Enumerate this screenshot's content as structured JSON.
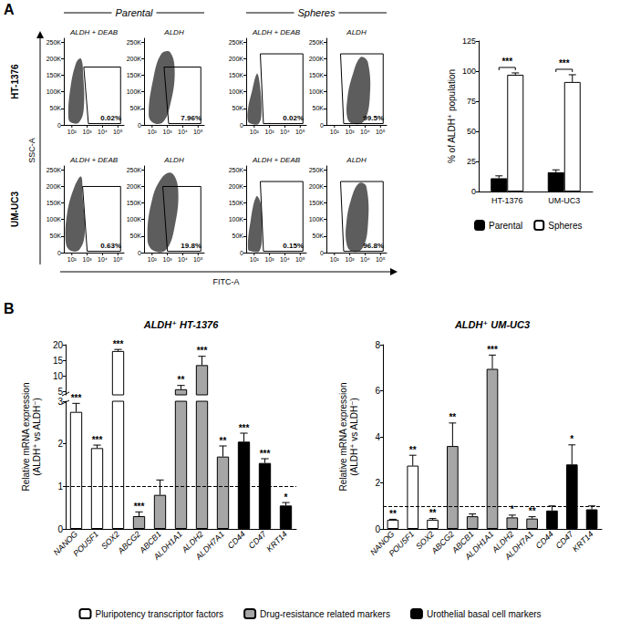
{
  "figure": {
    "panel_labels": [
      "A",
      "B"
    ],
    "headers": [
      "Parental",
      "Spheres"
    ],
    "rows": [
      "HT-1376",
      "UM-UC3"
    ],
    "flow_xlabel": "FITC-A",
    "flow_ylabel": "SSC-A",
    "flow_axes": {
      "log": "x",
      "xlim": [
        30,
        250000
      ],
      "xticks": [
        {
          "value": 100,
          "label": "10²"
        },
        {
          "value": 1000,
          "label": "10³"
        },
        {
          "value": 10000,
          "label": "10⁴"
        },
        {
          "value": 100000,
          "label": "10⁵"
        }
      ],
      "ylim": [
        0,
        262000
      ],
      "yticks": [
        0,
        {
          "value": 50000,
          "label": "50K"
        },
        {
          "value": 100000,
          "label": "100K"
        },
        {
          "value": 150000,
          "label": "150K"
        },
        {
          "value": 200000,
          "label": "200K"
        },
        {
          "value": 250000,
          "label": "250K"
        }
      ]
    }
  },
  "chart_data": [
    {
      "type": "flow",
      "panel": "A",
      "header": "Parental",
      "row": "HT-1376",
      "title": "ALDH + DEAB",
      "gate_label": "0.02%",
      "gate": [
        [
          1200,
          4000
        ],
        [
          150000,
          4000
        ],
        [
          150000,
          175000
        ],
        [
          600,
          175000
        ]
      ],
      "cloud": [
        [
          60,
          20000
        ],
        [
          100,
          6000
        ],
        [
          300,
          8000
        ],
        [
          600,
          50000
        ],
        [
          550,
          150000
        ],
        [
          400,
          200000
        ],
        [
          200,
          190000
        ],
        [
          80,
          110000
        ]
      ]
    },
    {
      "type": "flow",
      "panel": "A",
      "header": "Parental",
      "row": "HT-1376",
      "title": "ALDH",
      "gate_label": "7.96%",
      "gate": [
        [
          1200,
          4000
        ],
        [
          150000,
          4000
        ],
        [
          150000,
          175000
        ],
        [
          600,
          175000
        ]
      ],
      "cloud": [
        [
          60,
          30000
        ],
        [
          120,
          6000
        ],
        [
          500,
          8000
        ],
        [
          1500,
          60000
        ],
        [
          3000,
          160000
        ],
        [
          1500,
          220000
        ],
        [
          400,
          215000
        ],
        [
          120,
          140000
        ]
      ]
    },
    {
      "type": "flow",
      "panel": "A",
      "header": "Spheres",
      "row": "HT-1376",
      "title": "ALDH + DEAB",
      "gate_label": "0.02%",
      "gate": [
        [
          400,
          4000
        ],
        [
          150000,
          4000
        ],
        [
          150000,
          215000
        ],
        [
          250,
          215000
        ]
      ],
      "cloud": [
        [
          40,
          10000
        ],
        [
          70,
          3000
        ],
        [
          200,
          4000
        ],
        [
          300,
          40000
        ],
        [
          220,
          130000
        ],
        [
          150,
          155000
        ],
        [
          70,
          100000
        ],
        [
          40,
          50000
        ]
      ]
    },
    {
      "type": "flow",
      "panel": "A",
      "header": "Spheres",
      "row": "HT-1376",
      "title": "ALDH",
      "gate_label": "99.5%",
      "gate": [
        [
          400,
          4000
        ],
        [
          150000,
          4000
        ],
        [
          150000,
          215000
        ],
        [
          250,
          215000
        ]
      ],
      "cloud": [
        [
          700,
          20000
        ],
        [
          1500,
          4000
        ],
        [
          8000,
          10000
        ],
        [
          20000,
          80000
        ],
        [
          15000,
          190000
        ],
        [
          5000,
          205000
        ],
        [
          1500,
          150000
        ],
        [
          700,
          80000
        ]
      ]
    },
    {
      "type": "flow",
      "panel": "A",
      "header": "Parental",
      "row": "UM-UC3",
      "title": "ALDH + DEAB",
      "gate_label": "0.63%",
      "gate": [
        [
          1000,
          4000
        ],
        [
          150000,
          4000
        ],
        [
          150000,
          200000
        ],
        [
          500,
          200000
        ]
      ],
      "cloud": [
        [
          40,
          30000
        ],
        [
          80,
          6000
        ],
        [
          300,
          8000
        ],
        [
          700,
          60000
        ],
        [
          500,
          170000
        ],
        [
          400,
          230000
        ],
        [
          150,
          200000
        ],
        [
          50,
          120000
        ]
      ]
    },
    {
      "type": "flow",
      "panel": "A",
      "header": "Parental",
      "row": "UM-UC3",
      "title": "ALDH",
      "gate_label": "19.8%",
      "gate": [
        [
          1000,
          4000
        ],
        [
          150000,
          4000
        ],
        [
          150000,
          200000
        ],
        [
          500,
          200000
        ]
      ],
      "cloud": [
        [
          50,
          40000
        ],
        [
          120,
          6000
        ],
        [
          800,
          8000
        ],
        [
          3000,
          80000
        ],
        [
          5000,
          190000
        ],
        [
          2000,
          240000
        ],
        [
          500,
          230000
        ],
        [
          100,
          160000
        ]
      ]
    },
    {
      "type": "flow",
      "panel": "A",
      "header": "Spheres",
      "row": "UM-UC3",
      "title": "ALDH + DEAB",
      "gate_label": "0.15%",
      "gate": [
        [
          400,
          4000
        ],
        [
          150000,
          4000
        ],
        [
          150000,
          215000
        ],
        [
          250,
          215000
        ]
      ],
      "cloud": [
        [
          40,
          10000
        ],
        [
          80,
          3000
        ],
        [
          220,
          5000
        ],
        [
          320,
          50000
        ],
        [
          260,
          150000
        ],
        [
          140,
          170000
        ],
        [
          60,
          100000
        ]
      ]
    },
    {
      "type": "flow",
      "panel": "A",
      "header": "Spheres",
      "row": "UM-UC3",
      "title": "ALDH",
      "gate_label": "96.8%",
      "gate": [
        [
          400,
          4000
        ],
        [
          150000,
          4000
        ],
        [
          150000,
          215000
        ],
        [
          250,
          215000
        ]
      ],
      "cloud": [
        [
          600,
          30000
        ],
        [
          1200,
          5000
        ],
        [
          6000,
          10000
        ],
        [
          15000,
          80000
        ],
        [
          12000,
          200000
        ],
        [
          4000,
          210000
        ],
        [
          1200,
          160000
        ],
        [
          600,
          90000
        ]
      ]
    },
    {
      "type": "bar",
      "panel": "A",
      "ylabel": "% of ALDH⁺ population",
      "categories": [
        "HT-1376",
        "UM-UC3"
      ],
      "series": [
        {
          "name": "Parental",
          "color": "#000000",
          "values": [
            11,
            16
          ],
          "errors": [
            2,
            2
          ]
        },
        {
          "name": "Spheres",
          "color": "#ffffff",
          "values": [
            97,
            91
          ],
          "errors": [
            1.5,
            6
          ]
        }
      ],
      "significance": [
        "***",
        "***"
      ],
      "ylim": [
        0,
        125
      ],
      "yticks": [
        0,
        25,
        50,
        75,
        100,
        125
      ],
      "legend": "bottom"
    },
    {
      "type": "bar",
      "panel": "B",
      "title": "ALDH⁺ HT-1376",
      "ylabel": "Relative mRNA expression\n(ALDH⁺ vs ALDH⁻)",
      "categories": [
        "NANOG",
        "POU5F1",
        "SOX2",
        "ABCG2",
        "ABCB1",
        "ALDH1A1",
        "ALDH2",
        "ALDH7A1",
        "CD44",
        "CD47",
        "KRT14"
      ],
      "series": [
        {
          "name": "Pluripotency transcriptor factors",
          "color": "#ffffff",
          "values": [
            2.75,
            1.9,
            18,
            null,
            null,
            null,
            null,
            null,
            null,
            null,
            null
          ],
          "errors": [
            0.2,
            0.07,
            0.5,
            null,
            null,
            null,
            null,
            null,
            null,
            null,
            null
          ]
        },
        {
          "name": "Drug-resistance related markers",
          "color": "#a6a6a6",
          "values": [
            null,
            null,
            null,
            0.3,
            0.8,
            5.8,
            13.5,
            1.7,
            null,
            null,
            null
          ],
          "errors": [
            null,
            null,
            null,
            0.1,
            0.35,
            1.2,
            2.8,
            0.25,
            null,
            null,
            null
          ]
        },
        {
          "name": "Urothelial basal cell markers",
          "color": "#000000",
          "values": [
            null,
            null,
            null,
            null,
            null,
            null,
            null,
            null,
            2.05,
            1.55,
            0.55
          ],
          "errors": [
            null,
            null,
            null,
            null,
            null,
            null,
            null,
            null,
            0.2,
            0.1,
            0.07
          ]
        }
      ],
      "significance": [
        "***",
        "***",
        "***",
        "***",
        null,
        "**",
        "***",
        "**",
        "***",
        "***",
        "*"
      ],
      "reference_line": 1,
      "ylim": [
        0,
        20
      ],
      "yticks": [
        0,
        1,
        2,
        3,
        5,
        10,
        15,
        20
      ],
      "ybreak": [
        3,
        4
      ],
      "legend": "bottom"
    },
    {
      "type": "bar",
      "panel": "B",
      "title": "ALDH⁺ UM-UC3",
      "ylabel": "Relative mRNA expression\n(ALDH⁺ vs ALDH⁻)",
      "categories": [
        "NANOG",
        "POU5F1",
        "SOX2",
        "ABCG2",
        "ABCB1",
        "ALDH1A1",
        "ALDH2",
        "ALDH7A1",
        "CD44",
        "CD47",
        "KRT14"
      ],
      "series": [
        {
          "name": "Pluripotency transcriptor factors",
          "color": "#ffffff",
          "values": [
            0.4,
            2.75,
            0.4,
            null,
            null,
            null,
            null,
            null,
            null,
            null,
            null
          ],
          "errors": [
            0.02,
            0.45,
            0.05,
            null,
            null,
            null,
            null,
            null,
            null,
            null,
            null
          ]
        },
        {
          "name": "Drug-resistance related markers",
          "color": "#a6a6a6",
          "values": [
            null,
            null,
            null,
            3.6,
            0.55,
            6.95,
            0.5,
            0.45,
            null,
            null,
            null
          ],
          "errors": [
            null,
            null,
            null,
            1.0,
            0.1,
            0.6,
            0.1,
            0.08,
            null,
            null,
            null
          ]
        },
        {
          "name": "Urothelial basal cell markers",
          "color": "#000000",
          "values": [
            null,
            null,
            null,
            null,
            null,
            null,
            null,
            null,
            0.8,
            2.8,
            0.85
          ],
          "errors": [
            null,
            null,
            null,
            null,
            null,
            null,
            null,
            null,
            0.2,
            0.85,
            0.15
          ]
        }
      ],
      "significance": [
        "**",
        "**",
        "**",
        "**",
        null,
        "***",
        "*",
        "**",
        null,
        "*",
        null
      ],
      "reference_line": 1,
      "ylim": [
        0,
        8
      ],
      "yticks": [
        0,
        2,
        4,
        6,
        8
      ],
      "legend": "bottom"
    }
  ]
}
